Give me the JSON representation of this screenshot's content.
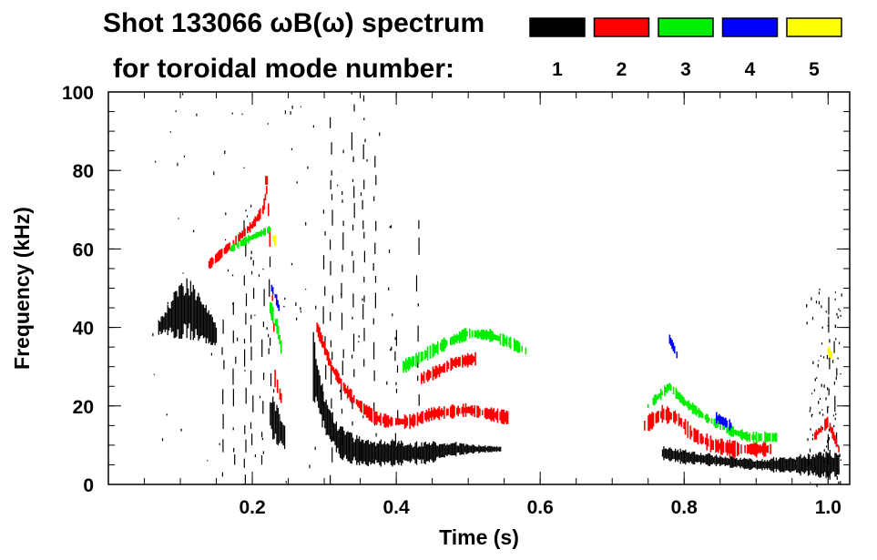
{
  "chart_data": {
    "type": "scatter",
    "title_line1": "Shot 133066 ωB(ω) spectrum",
    "title_line2": "for toroidal mode number:",
    "xlabel": "Time (s)",
    "ylabel": "Frequency (kHz)",
    "xlim": [
      0.0,
      1.03
    ],
    "ylim": [
      0,
      100
    ],
    "x_ticks": [
      0.2,
      0.4,
      0.6,
      0.8,
      1.0
    ],
    "x_tick_labels": [
      "0.2",
      "0.4",
      "0.6",
      "0.8",
      "1.0"
    ],
    "x_minor_step": 0.05,
    "y_ticks": [
      0,
      20,
      40,
      60,
      80,
      100
    ],
    "y_tick_labels": [
      "0",
      "20",
      "40",
      "60",
      "80",
      "100"
    ],
    "y_minor_step": 5,
    "legend": [
      {
        "label": "1",
        "color": "#000000"
      },
      {
        "label": "2",
        "color": "#ff0000"
      },
      {
        "label": "3",
        "color": "#00ee00"
      },
      {
        "label": "4",
        "color": "#0000ff"
      },
      {
        "label": "5",
        "color": "#ffff00"
      }
    ],
    "series": [
      {
        "name": "n=1",
        "color": "#000000",
        "bands": [
          {
            "t": [
              0.07,
              0.09,
              0.11,
              0.13,
              0.15
            ],
            "f": [
              40,
              43,
              45,
              42,
              38
            ],
            "w": [
              4,
              12,
              16,
              12,
              6
            ]
          },
          {
            "t": [
              0.225,
              0.235,
              0.245
            ],
            "f": [
              18,
              15,
              12
            ],
            "w": [
              12,
              10,
              6
            ]
          },
          {
            "t": [
              0.285,
              0.3,
              0.32,
              0.34,
              0.36,
              0.4,
              0.44,
              0.48,
              0.52,
              0.545
            ],
            "f": [
              30,
              18,
              11,
              9,
              8,
              8,
              8,
              9,
              9,
              9
            ],
            "w": [
              18,
              10,
              9,
              8,
              7,
              7,
              6,
              4,
              2,
              1.5
            ]
          },
          {
            "t": [
              0.77,
              0.8,
              0.85,
              0.9,
              0.95,
              1.0,
              1.015
            ],
            "f": [
              8,
              7,
              6,
              5,
              5,
              5,
              5
            ],
            "w": [
              4,
              4,
              3,
              3,
              5,
              8,
              6
            ]
          }
        ],
        "streaks": [
          {
            "t": 0.16,
            "f": [
              2,
              42
            ]
          },
          {
            "t": 0.175,
            "f": [
              5,
              50
            ]
          },
          {
            "t": 0.19,
            "f": [
              0,
              70
            ]
          },
          {
            "t": 0.2,
            "f": [
              10,
              60
            ]
          },
          {
            "t": 0.215,
            "f": [
              5,
              55
            ]
          },
          {
            "t": 0.225,
            "f": [
              25,
              60
            ]
          },
          {
            "t": 0.3,
            "f": [
              20,
              70
            ]
          },
          {
            "t": 0.31,
            "f": [
              0,
              95
            ]
          },
          {
            "t": 0.325,
            "f": [
              10,
              80
            ]
          },
          {
            "t": 0.34,
            "f": [
              15,
              100
            ]
          },
          {
            "t": 0.355,
            "f": [
              30,
              100
            ]
          },
          {
            "t": 0.37,
            "f": [
              15,
              85
            ]
          },
          {
            "t": 0.4,
            "f": [
              10,
              40
            ]
          },
          {
            "t": 0.43,
            "f": [
              20,
              70
            ]
          },
          {
            "t": 1.0,
            "f": [
              5,
              48
            ]
          },
          {
            "t": 1.01,
            "f": [
              10,
              45
            ]
          }
        ],
        "scatter": {
          "count": 180,
          "regions": [
            [
              0.06,
              0.4,
              0,
              100
            ],
            [
              0.97,
              1.02,
              0,
              50
            ]
          ]
        }
      },
      {
        "name": "n=2",
        "color": "#ff0000",
        "curves": [
          {
            "t": [
              0.14,
              0.17,
              0.2,
              0.215,
              0.22
            ],
            "f": [
              56,
              61,
              66,
              70,
              75
            ],
            "w": 2
          },
          {
            "t": [
              0.215,
              0.22,
              0.225,
              0.23
            ],
            "f": [
              70,
              80,
              60,
              40
            ],
            "w": 3
          },
          {
            "t": [
              0.23,
              0.235,
              0.24
            ],
            "f": [
              28,
              25,
              22
            ],
            "w": 3
          },
          {
            "t": [
              0.29,
              0.31,
              0.33,
              0.35,
              0.37,
              0.39,
              0.42,
              0.45,
              0.5,
              0.555
            ],
            "f": [
              40,
              30,
              24,
              20,
              17,
              16,
              16,
              18,
              19,
              17
            ],
            "w": 2.5
          },
          {
            "t": [
              0.435,
              0.46,
              0.48,
              0.51
            ],
            "f": [
              27,
              29,
              31,
              32
            ],
            "w": 2.5
          },
          {
            "t": [
              0.745,
              0.77,
              0.79,
              0.81,
              0.84,
              0.87,
              0.9,
              0.92
            ],
            "f": [
              15,
              18,
              17,
              13,
              10,
              9,
              9,
              9
            ],
            "w": 3
          },
          {
            "t": [
              0.98,
              1.0,
              1.015
            ],
            "f": [
              12,
              16,
              9
            ],
            "w": 2
          }
        ]
      },
      {
        "name": "n=3",
        "color": "#00ee00",
        "curves": [
          {
            "t": [
              0.17,
              0.2,
              0.225
            ],
            "f": [
              60,
              63,
              65
            ],
            "w": 1.5
          },
          {
            "t": [
              0.225,
              0.235,
              0.24
            ],
            "f": [
              45,
              40,
              35
            ],
            "w": 3
          },
          {
            "t": [
              0.41,
              0.44,
              0.47,
              0.5,
              0.53,
              0.56,
              0.58
            ],
            "f": [
              30,
              33,
              36,
              38.5,
              38,
              36,
              34
            ],
            "w": 2.5
          },
          {
            "t": [
              0.75,
              0.78,
              0.8,
              0.83,
              0.86,
              0.89,
              0.93
            ],
            "f": [
              20,
              25,
              21,
              17,
              14,
              12,
              12
            ],
            "w": 2
          }
        ]
      },
      {
        "name": "n=4",
        "color": "#0000ff",
        "curves": [
          {
            "t": [
              0.227,
              0.232,
              0.237
            ],
            "f": [
              50,
              48,
              45
            ],
            "w": 2
          },
          {
            "t": [
              0.78,
              0.785,
              0.79
            ],
            "f": [
              37,
              35,
              33
            ],
            "w": 2
          },
          {
            "t": [
              0.845,
              0.855,
              0.865
            ],
            "f": [
              17,
              16,
              15
            ],
            "w": 2
          }
        ]
      },
      {
        "name": "n=5",
        "color": "#ffff00",
        "curves": [
          {
            "t": [
              0.228,
              0.232
            ],
            "f": [
              63,
              62
            ],
            "w": 2
          },
          {
            "t": [
              1.0,
              1.005
            ],
            "f": [
              34,
              33
            ],
            "w": 2
          }
        ]
      }
    ]
  }
}
